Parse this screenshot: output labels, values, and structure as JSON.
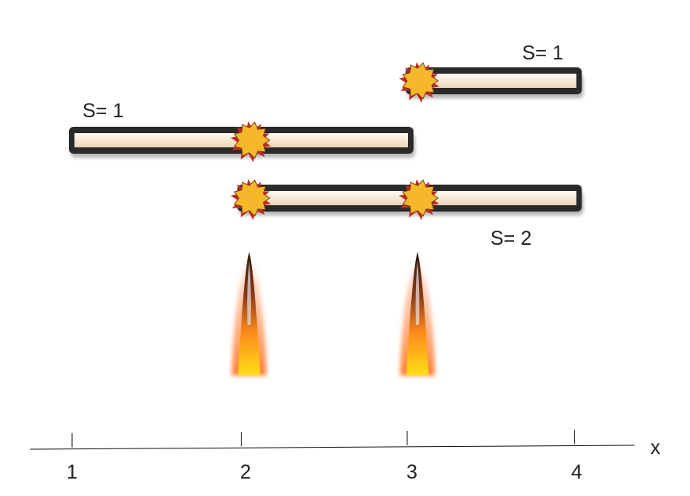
{
  "segments": [
    {
      "id": "top",
      "label": "S= 1",
      "start": 3,
      "end": 4,
      "sparks": [
        3
      ]
    },
    {
      "id": "middle",
      "label": "S= 1",
      "start": 1,
      "end": 3,
      "sparks": [
        2
      ]
    },
    {
      "id": "bottom",
      "label": "S= 2",
      "start": 2,
      "end": 4,
      "sparks": [
        2,
        3
      ]
    }
  ],
  "flames": [
    2,
    3
  ],
  "axis": {
    "label": "x",
    "ticks": [
      "1",
      "2",
      "3",
      "4"
    ]
  },
  "colors": {
    "stick_border": "#2a2a2a",
    "stick_fill": "#f7e9d8",
    "spark": "#f5b82a",
    "spark_edge": "#c42a1c",
    "flame_core": "#ffd21a",
    "flame_outer": "#ff6a1a"
  }
}
